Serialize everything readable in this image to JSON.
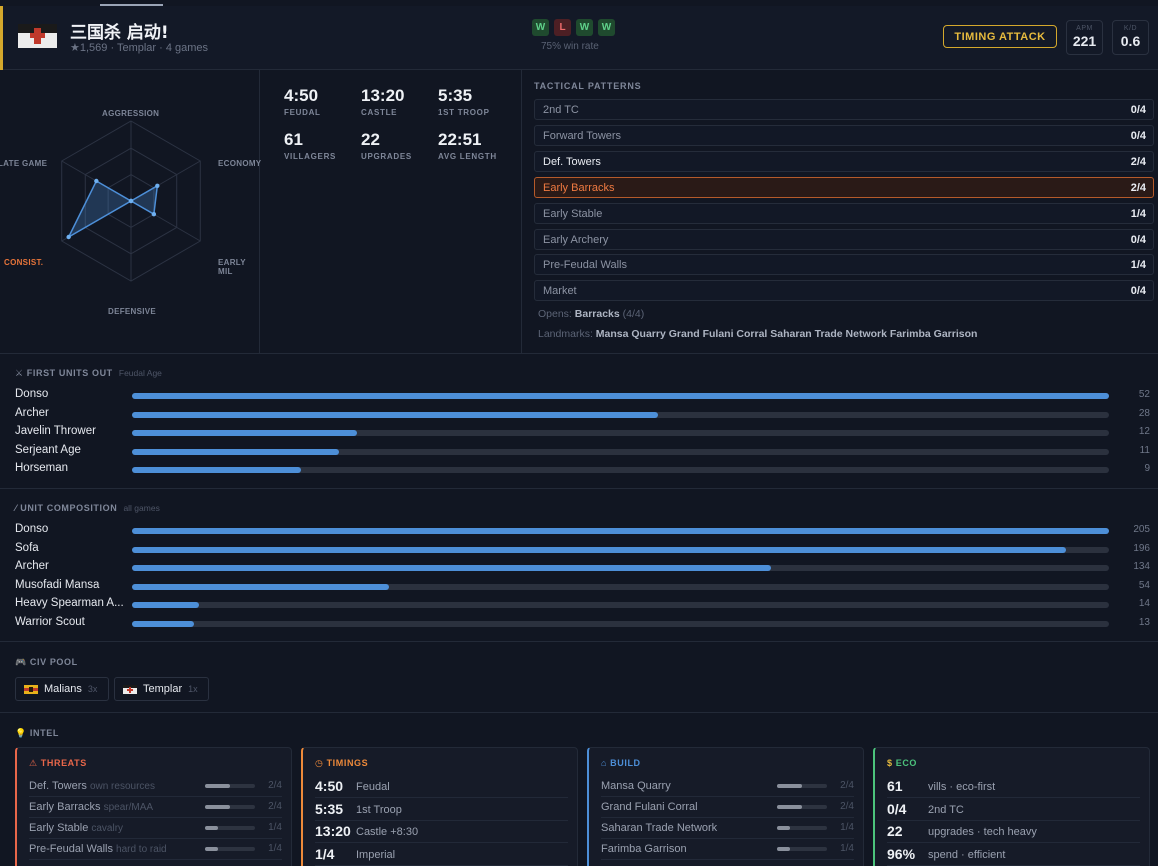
{
  "header": {
    "player_name": "三国杀 启动!",
    "meta": "★1,569 · Templar · 4 games",
    "results": [
      "W",
      "L",
      "W",
      "W"
    ],
    "win_rate": "75% win rate",
    "badge": "TIMING ATTACK",
    "apm_label": "APM",
    "apm_value": "221",
    "kd_label": "K/D",
    "kd_value": "0.6"
  },
  "radar": {
    "labels": {
      "aggression": "AGGRESSION",
      "economy": "ECONOMY",
      "early_mil": "EARLY MIL",
      "defensive": "DEFENSIVE",
      "consist": "CONSIST.",
      "late_game": "LATE GAME"
    },
    "values": {
      "aggression": 0.0,
      "economy": 0.38,
      "early_mil": 0.33,
      "defensive": 0.0,
      "consist": 0.9,
      "late_game": 0.5
    },
    "highlight_color": "#e9753a",
    "fill_color": "#4d8fd8"
  },
  "timings": [
    {
      "value": "4:50",
      "label": "FEUDAL"
    },
    {
      "value": "13:20",
      "label": "CASTLE"
    },
    {
      "value": "5:35",
      "label": "1ST TROOP"
    },
    {
      "value": "61",
      "label": "VILLAGERS"
    },
    {
      "value": "22",
      "label": "UPGRADES"
    },
    {
      "value": "22:51",
      "label": "AVG LENGTH"
    }
  ],
  "patterns": {
    "title": "TACTICAL PATTERNS",
    "items": [
      {
        "label": "2nd TC",
        "count": "0/4"
      },
      {
        "label": "Forward Towers",
        "count": "0/4"
      },
      {
        "label": "Def. Towers",
        "count": "2/4"
      },
      {
        "label": "Early Barracks",
        "count": "2/4"
      },
      {
        "label": "Early Stable",
        "count": "1/4"
      },
      {
        "label": "Early Archery",
        "count": "0/4"
      },
      {
        "label": "Pre-Feudal Walls",
        "count": "1/4"
      },
      {
        "label": "Market",
        "count": "0/4"
      }
    ],
    "opens_prefix": "Opens:",
    "opens_value": "Barracks",
    "opens_count": "(4/4)",
    "landmarks_prefix": "Landmarks:",
    "landmarks": [
      "Mansa Quarry",
      "Grand Fulani Corral",
      "Saharan Trade Network",
      "Farimba Garrison"
    ]
  },
  "first_units": {
    "title": "FIRST UNITS OUT",
    "subtitle": "Feudal Age",
    "max": 52,
    "items": [
      {
        "name": "Donso",
        "value": 52
      },
      {
        "name": "Archer",
        "value": 28
      },
      {
        "name": "Javelin Thrower",
        "value": 12
      },
      {
        "name": "Serjeant Age",
        "value": 11
      },
      {
        "name": "Horseman",
        "value": 9
      }
    ]
  },
  "composition": {
    "title": "UNIT COMPOSITION",
    "subtitle": "all games",
    "max": 205,
    "items": [
      {
        "name": "Donso",
        "value": 205
      },
      {
        "name": "Sofa",
        "value": 196
      },
      {
        "name": "Archer",
        "value": 134
      },
      {
        "name": "Musofadi Mansa",
        "value": 54
      },
      {
        "name": "Heavy Spearman A...",
        "value": 14
      },
      {
        "name": "Warrior Scout",
        "value": 13
      }
    ]
  },
  "civ_pool": {
    "title": "CIV POOL",
    "items": [
      {
        "name": "Malians",
        "count": "3x"
      },
      {
        "name": "Templar",
        "count": "1x"
      }
    ]
  },
  "intel": {
    "title": "INTEL",
    "threats": {
      "title": "THREATS",
      "color": "#e9674a",
      "items": [
        {
          "label": "Def. Towers",
          "note": "own resources",
          "count": "2/4",
          "fill": 0.5
        },
        {
          "label": "Early Barracks",
          "note": "spear/MAA",
          "count": "2/4",
          "fill": 0.5
        },
        {
          "label": "Early Stable",
          "note": "cavalry",
          "count": "1/4",
          "fill": 0.25
        },
        {
          "label": "Pre-Feudal Walls",
          "note": "hard to raid",
          "count": "1/4",
          "fill": 0.25
        }
      ]
    },
    "timings": {
      "title": "TIMINGS",
      "color": "#ee8a3a",
      "items": [
        {
          "value": "4:50",
          "label": "Feudal"
        },
        {
          "value": "5:35",
          "label": "1st Troop"
        },
        {
          "value": "13:20",
          "label": "Castle +8:30"
        },
        {
          "value": "1/4",
          "label": "Imperial"
        }
      ]
    },
    "build": {
      "title": "BUILD",
      "color": "#4d8fd8",
      "items": [
        {
          "label": "Mansa Quarry",
          "count": "2/4",
          "fill": 0.5
        },
        {
          "label": "Grand Fulani Corral",
          "count": "2/4",
          "fill": 0.5
        },
        {
          "label": "Saharan Trade Network",
          "count": "1/4",
          "fill": 0.25
        },
        {
          "label": "Farimba Garrison",
          "count": "1/4",
          "fill": 0.25
        }
      ]
    },
    "eco": {
      "title": "ECO",
      "color": "#4cc37c",
      "items": [
        {
          "value": "61",
          "label": "vills · eco-first"
        },
        {
          "value": "0/4",
          "label": "2nd TC"
        },
        {
          "value": "22",
          "label": "upgrades · tech heavy"
        },
        {
          "value": "96%",
          "label": "spend · efficient"
        }
      ]
    }
  }
}
